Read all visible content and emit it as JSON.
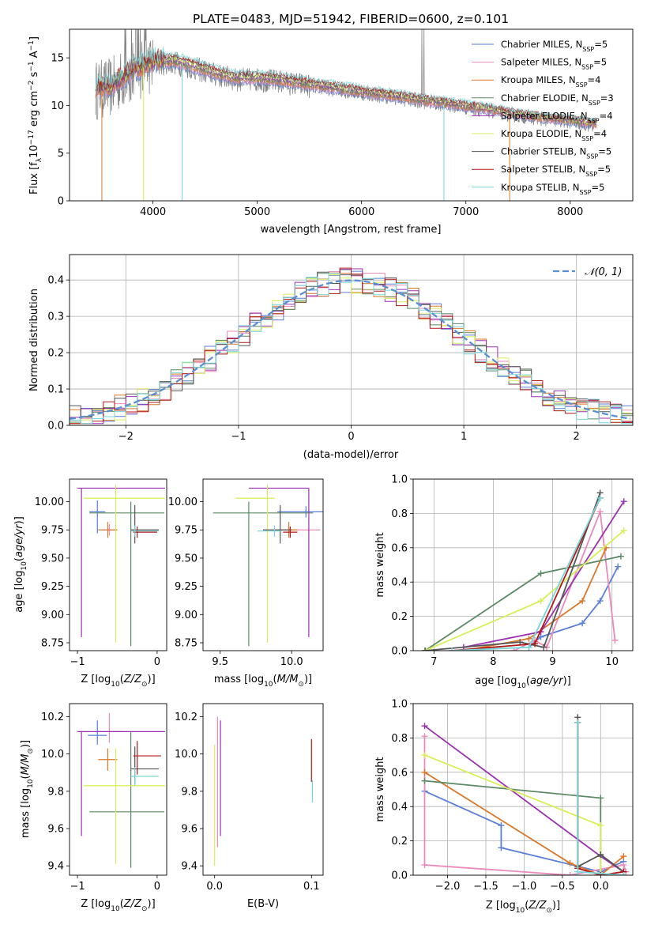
{
  "figure": {
    "title": "PLATE=0483, MJD=51942, FIBERID=0600, z=0.101"
  },
  "legend_entries": [
    {
      "name": "Chabrier MILES",
      "nssp": "5",
      "color": "#5a7fd6"
    },
    {
      "name": "Salpeter MILES",
      "nssp": "5",
      "color": "#e88aba"
    },
    {
      "name": "Kroupa MILES",
      "nssp": "4",
      "color": "#d9782a"
    },
    {
      "name": "Chabrier ELODIE",
      "nssp": "3",
      "color": "#5c8a64"
    },
    {
      "name": "Salpeter ELODIE",
      "nssp": "4",
      "color": "#9b30b0"
    },
    {
      "name": "Kroupa ELODIE",
      "nssp": "4",
      "color": "#d8ee58"
    },
    {
      "name": "Chabrier STELIB",
      "nssp": "5",
      "color": "#555555"
    },
    {
      "name": "Salpeter STELIB",
      "nssp": "5",
      "color": "#b01818"
    },
    {
      "name": "Kroupa STELIB",
      "nssp": "5",
      "color": "#78d6d8"
    }
  ],
  "nssp_prefix": "N",
  "nssp_sub": "SSP",
  "chart_data": [
    {
      "id": "spectrum",
      "type": "line",
      "title": "PLATE=0483, MJD=51942, FIBERID=0600, z=0.101",
      "xlabel": "wavelength [Angstrom, rest frame]",
      "ylabel": "Flux [fλ10⁻¹⁷ erg cm⁻² s⁻¹ A⁻¹]",
      "xlim": [
        3200,
        8600
      ],
      "ylim": [
        0,
        18
      ],
      "xticks": [
        4000,
        5000,
        6000,
        7000,
        8000
      ],
      "yticks": [
        0,
        5,
        10,
        15
      ],
      "grid": false,
      "legend": "top-right",
      "data_color": "#808080",
      "envelope": {
        "x": [
          3450,
          3600,
          3800,
          4000,
          4200,
          4400,
          4600,
          4800,
          5000,
          5200,
          5400,
          5600,
          5800,
          6000,
          6200,
          6400,
          6600,
          6800,
          7000,
          7200,
          7400,
          7600,
          7800,
          8000,
          8200
        ],
        "y": [
          11.6,
          11.9,
          13.5,
          14.4,
          14.5,
          13.9,
          13.2,
          12.7,
          12.7,
          12.5,
          12.2,
          11.9,
          11.6,
          11.3,
          11.0,
          10.7,
          10.4,
          10.1,
          9.8,
          9.5,
          9.1,
          8.8,
          8.5,
          8.3,
          8.0
        ]
      },
      "model_cutoffs": [
        {
          "series": "Kroupa MILES",
          "drop_x": [
            3510,
            7420
          ]
        },
        {
          "series": "Kroupa ELODIE",
          "drop_x": [
            3910,
            6790
          ]
        },
        {
          "series": "Kroupa STELIB",
          "drop_x": [
            4280,
            6790
          ]
        }
      ]
    },
    {
      "id": "residuals",
      "type": "histogram",
      "xlabel": "(data-model)/error",
      "ylabel": "Normed distribution",
      "xlim": [
        -2.5,
        2.5
      ],
      "ylim": [
        0,
        0.47
      ],
      "xticks": [
        -2,
        -1,
        0,
        1,
        2
      ],
      "yticks": [
        0.0,
        0.1,
        0.2,
        0.3,
        0.4
      ],
      "grid": true,
      "legend": "top-right",
      "reference_curve": {
        "label": "𝒩(0, 1)",
        "mu": 0,
        "sigma": 1,
        "color": "#5b8fd4"
      },
      "bin_width": 0.1
    },
    {
      "id": "age-vs-Z",
      "type": "errorbar",
      "xlabel": "Z [log₁₀(Z/Z⊙)]",
      "ylabel": "age  [log₁₀(age/yr)]",
      "xlim": [
        -1.1,
        0.12
      ],
      "ylim": [
        8.68,
        10.2
      ],
      "xticks": [
        -1,
        0
      ],
      "yticks": [
        8.75,
        9.0,
        9.25,
        9.5,
        9.75,
        10.0
      ],
      "points": [
        {
          "series": "Chabrier MILES",
          "x": -0.75,
          "xerr": [
            0.1,
            0.1
          ],
          "y": 9.91,
          "yerr": [
            0.19,
            0.1
          ]
        },
        {
          "series": "Salpeter MILES",
          "x": -0.6,
          "xerr": [
            0.1,
            0.1
          ],
          "y": 9.75,
          "yerr": [
            0.05,
            0.05
          ]
        },
        {
          "series": "Kroupa MILES",
          "x": -0.62,
          "xerr": [
            0.12,
            0.12
          ],
          "y": 9.75,
          "yerr": [
            0.07,
            0.07
          ]
        },
        {
          "series": "Chabrier ELODIE",
          "x": -0.33,
          "xerr": [
            0.52,
            0.42
          ],
          "y": 9.9,
          "yerr": [
            1.18,
            0.1
          ]
        },
        {
          "series": "Salpeter ELODIE",
          "x": -0.95,
          "xerr": [
            0.05,
            1.05
          ],
          "y": 10.12,
          "yerr": [
            1.32,
            0.0
          ]
        },
        {
          "series": "Kroupa ELODIE",
          "x": -0.52,
          "xerr": [
            0.4,
            0.62
          ],
          "y": 10.03,
          "yerr": [
            1.28,
            0.12
          ]
        },
        {
          "series": "Chabrier STELIB",
          "x": -0.28,
          "xerr": [
            0.05,
            0.3
          ],
          "y": 9.75,
          "yerr": [
            0.12,
            0.22
          ]
        },
        {
          "series": "Salpeter STELIB",
          "x": -0.25,
          "xerr": [
            0.05,
            0.25
          ],
          "y": 9.73,
          "yerr": [
            0.05,
            0.05
          ]
        },
        {
          "series": "Kroupa STELIB",
          "x": -0.28,
          "xerr": [
            0.05,
            0.3
          ],
          "y": 9.74,
          "yerr": [
            0.05,
            0.05
          ]
        }
      ]
    },
    {
      "id": "age-vs-mass",
      "type": "errorbar",
      "xlabel": "mass [log₁₀(M/M⊙)]",
      "ylabel": "",
      "xlim": [
        9.38,
        10.22
      ],
      "ylim": [
        8.68,
        10.2
      ],
      "xticks": [
        9.5,
        10.0
      ],
      "yticks": [
        8.75,
        9.0,
        9.25,
        9.5,
        9.75,
        10.0
      ],
      "points": [
        {
          "series": "Chabrier MILES",
          "x": 10.1,
          "xerr": [
            0.2,
            0.12
          ],
          "y": 9.91,
          "yerr": [
            0.05,
            0.05
          ]
        },
        {
          "series": "Salpeter MILES",
          "x": 9.98,
          "xerr": [
            0.1,
            0.22
          ],
          "y": 9.75,
          "yerr": [
            0.05,
            0.05
          ]
        },
        {
          "series": "Kroupa MILES",
          "x": 9.98,
          "xerr": [
            0.06,
            0.06
          ],
          "y": 9.75,
          "yerr": [
            0.07,
            0.07
          ]
        },
        {
          "series": "Chabrier ELODIE",
          "x": 9.7,
          "xerr": [
            0.25,
            0.45
          ],
          "y": 9.9,
          "yerr": [
            1.18,
            0.1
          ]
        },
        {
          "series": "Salpeter ELODIE",
          "x": 10.12,
          "xerr": [
            0.42,
            0.0
          ],
          "y": 10.12,
          "yerr": [
            1.32,
            0.0
          ]
        },
        {
          "series": "Kroupa ELODIE",
          "x": 9.83,
          "xerr": [
            0.22,
            0.05
          ],
          "y": 10.03,
          "yerr": [
            1.28,
            0.12
          ]
        },
        {
          "series": "Chabrier STELIB",
          "x": 9.92,
          "xerr": [
            0.12,
            0.08
          ],
          "y": 9.75,
          "yerr": [
            0.12,
            0.22
          ]
        },
        {
          "series": "Salpeter STELIB",
          "x": 9.99,
          "xerr": [
            0.05,
            0.05
          ],
          "y": 9.73,
          "yerr": [
            0.05,
            0.05
          ]
        },
        {
          "series": "Kroupa STELIB",
          "x": 9.88,
          "xerr": [
            0.12,
            0.05
          ],
          "y": 9.74,
          "yerr": [
            0.05,
            0.05
          ]
        }
      ]
    },
    {
      "id": "weight-vs-age",
      "type": "line",
      "xlabel": "age  [log₁₀(age/yr)]",
      "ylabel": "mass weight",
      "xlim": [
        6.65,
        10.35
      ],
      "ylim": [
        0,
        1
      ],
      "xticks": [
        7,
        8,
        9,
        10
      ],
      "yticks": [
        0.0,
        0.2,
        0.4,
        0.6,
        0.8,
        1.0
      ],
      "grid": true,
      "series": [
        {
          "name": "Chabrier MILES",
          "x": [
            8.6,
            8.8,
            9.5,
            9.8,
            10.1
          ],
          "y": [
            0.02,
            0.08,
            0.16,
            0.29,
            0.49
          ]
        },
        {
          "name": "Salpeter MILES",
          "x": [
            8.35,
            8.7,
            8.9,
            9.8,
            10.05
          ],
          "y": [
            0.0,
            0.06,
            0.02,
            0.81,
            0.06
          ]
        },
        {
          "name": "Kroupa MILES",
          "x": [
            7.5,
            8.6,
            9.5,
            9.9
          ],
          "y": [
            0.0,
            0.07,
            0.29,
            0.6
          ]
        },
        {
          "name": "Chabrier ELODIE",
          "x": [
            6.85,
            8.8,
            10.15
          ],
          "y": [
            0.0,
            0.45,
            0.55
          ]
        },
        {
          "name": "Salpeter ELODIE",
          "x": [
            7.5,
            8.8,
            10.2
          ],
          "y": [
            0.02,
            0.11,
            0.87
          ]
        },
        {
          "name": "Kroupa ELODIE",
          "x": [
            6.85,
            8.8,
            10.2
          ],
          "y": [
            0.0,
            0.29,
            0.7
          ]
        },
        {
          "name": "Chabrier STELIB",
          "x": [
            6.85,
            8.45,
            8.85,
            9.8
          ],
          "y": [
            0.0,
            0.05,
            0.02,
            0.92
          ]
        },
        {
          "name": "Salpeter STELIB",
          "x": [
            7.3,
            8.7,
            9.8
          ],
          "y": [
            0.0,
            0.04,
            0.89
          ]
        },
        {
          "name": "Kroupa STELIB",
          "x": [
            7.3,
            8.6,
            9.8
          ],
          "y": [
            0.0,
            0.02,
            0.89
          ]
        }
      ]
    },
    {
      "id": "mass-vs-Z",
      "type": "errorbar",
      "xlabel": "Z [log₁₀(Z/Z⊙)]",
      "ylabel": "mass [log₁₀(M/M⊙)]",
      "xlim": [
        -1.1,
        0.12
      ],
      "ylim": [
        9.35,
        10.27
      ],
      "xticks": [
        -1,
        0
      ],
      "yticks": [
        9.4,
        9.6,
        9.8,
        10.0,
        10.2
      ],
      "points": [
        {
          "series": "Chabrier MILES",
          "x": -0.75,
          "xerr": [
            0.12,
            0.12
          ],
          "y": 10.1,
          "yerr": [
            0.05,
            0.08
          ]
        },
        {
          "series": "Salpeter MILES",
          "x": -0.6,
          "xerr": [
            0.15,
            0.15
          ],
          "y": 10.12,
          "yerr": [
            0.06,
            0.1
          ]
        },
        {
          "series": "Kroupa MILES",
          "x": -0.62,
          "xerr": [
            0.12,
            0.12
          ],
          "y": 9.97,
          "yerr": [
            0.06,
            0.06
          ]
        },
        {
          "series": "Chabrier ELODIE",
          "x": -0.33,
          "xerr": [
            0.52,
            0.42
          ],
          "y": 9.69,
          "yerr": [
            0.3,
            0.43
          ]
        },
        {
          "series": "Salpeter ELODIE",
          "x": -0.95,
          "xerr": [
            0.05,
            1.05
          ],
          "y": 10.12,
          "yerr": [
            0.56,
            0.0
          ]
        },
        {
          "series": "Kroupa ELODIE",
          "x": -0.52,
          "xerr": [
            0.4,
            0.62
          ],
          "y": 9.83,
          "yerr": [
            0.42,
            0.2
          ]
        },
        {
          "series": "Chabrier STELIB",
          "x": -0.28,
          "xerr": [
            0.05,
            0.3
          ],
          "y": 9.92,
          "yerr": [
            0.08,
            0.12
          ]
        },
        {
          "series": "Salpeter STELIB",
          "x": -0.25,
          "xerr": [
            0.05,
            0.3
          ],
          "y": 9.99,
          "yerr": [
            0.1,
            0.08
          ]
        },
        {
          "series": "Kroupa STELIB",
          "x": -0.28,
          "xerr": [
            0.05,
            0.3
          ],
          "y": 9.88,
          "yerr": [
            0.05,
            0.05
          ]
        }
      ]
    },
    {
      "id": "mass-vs-EBV",
      "type": "errorbar",
      "xlabel": "E(B-V)",
      "ylabel": "",
      "xlim": [
        -0.012,
        0.112
      ],
      "ylim": [
        9.35,
        10.27
      ],
      "xticks": [
        0.0,
        0.1
      ],
      "xtick_labels": [
        "0.0",
        "0.1"
      ],
      "yticks": [
        9.4,
        9.6,
        9.8,
        10.0,
        10.2
      ],
      "points": [
        {
          "series": "Kroupa ELODIE",
          "x": 0.0,
          "xerr": [
            0,
            0
          ],
          "y": 9.7,
          "yerr": [
            0.3,
            0.35
          ]
        },
        {
          "series": "Salpeter MILES",
          "x": 0.003,
          "xerr": [
            0,
            0
          ],
          "y": 9.9,
          "yerr": [
            0.4,
            0.3
          ]
        },
        {
          "series": "Salpeter ELODIE",
          "x": 0.006,
          "xerr": [
            0,
            0
          ],
          "y": 9.87,
          "yerr": [
            0.31,
            0.31
          ]
        },
        {
          "series": "Salpeter STELIB",
          "x": 0.1,
          "xerr": [
            0,
            0
          ],
          "y": 9.95,
          "yerr": [
            0.1,
            0.13
          ]
        },
        {
          "series": "Kroupa STELIB",
          "x": 0.101,
          "xerr": [
            0,
            0
          ],
          "y": 9.8,
          "yerr": [
            0.06,
            0.06
          ]
        }
      ]
    },
    {
      "id": "weight-vs-Z",
      "type": "line",
      "xlabel": "Z [log₁₀(Z/Z⊙)]",
      "ylabel": "mass weight",
      "xlim": [
        -2.45,
        0.42
      ],
      "ylim": [
        0,
        1
      ],
      "xticks": [
        -2.0,
        -1.5,
        -1.0,
        -0.5,
        0.0
      ],
      "xtick_labels": [
        "−2.0",
        "−1.5",
        "−1.0",
        "−0.5",
        "0.0"
      ],
      "yticks": [
        0.0,
        0.2,
        0.4,
        0.6,
        0.8,
        1.0
      ],
      "grid": true,
      "series": [
        {
          "name": "Chabrier MILES",
          "x": [
            -2.3,
            -1.3,
            -1.3,
            0.0,
            0.3
          ],
          "y": [
            0.49,
            0.29,
            0.16,
            0.02,
            0.08
          ]
        },
        {
          "name": "Salpeter MILES",
          "x": [
            -2.3,
            -2.3,
            -0.4,
            0.3,
            0.33
          ],
          "y": [
            0.81,
            0.06,
            0.0,
            0.06,
            0.02
          ]
        },
        {
          "name": "Kroupa MILES",
          "x": [
            -2.3,
            -0.4,
            0.0,
            0.3
          ],
          "y": [
            0.6,
            0.07,
            0.0,
            0.11
          ]
        },
        {
          "name": "Chabrier ELODIE",
          "x": [
            -2.3,
            0.0,
            0.0
          ],
          "y": [
            0.55,
            0.45,
            0.0
          ]
        },
        {
          "name": "Salpeter ELODIE",
          "x": [
            -2.3,
            0.0,
            0.3
          ],
          "y": [
            0.87,
            0.11,
            0.02
          ]
        },
        {
          "name": "Kroupa ELODIE",
          "x": [
            -2.3,
            0.0,
            0.0
          ],
          "y": [
            0.7,
            0.29,
            0.0
          ]
        },
        {
          "name": "Chabrier STELIB",
          "x": [
            -0.3,
            -0.3,
            0.0,
            0.3
          ],
          "y": [
            0.92,
            0.05,
            0.12,
            0.02
          ]
        },
        {
          "name": "Salpeter STELIB",
          "x": [
            -0.3,
            -0.3,
            0.0,
            0.3
          ],
          "y": [
            0.89,
            0.04,
            0.0,
            0.02
          ]
        },
        {
          "name": "Kroupa STELIB",
          "x": [
            -0.3,
            -0.3,
            0.3
          ],
          "y": [
            0.89,
            0.02,
            0.0
          ]
        }
      ]
    }
  ]
}
